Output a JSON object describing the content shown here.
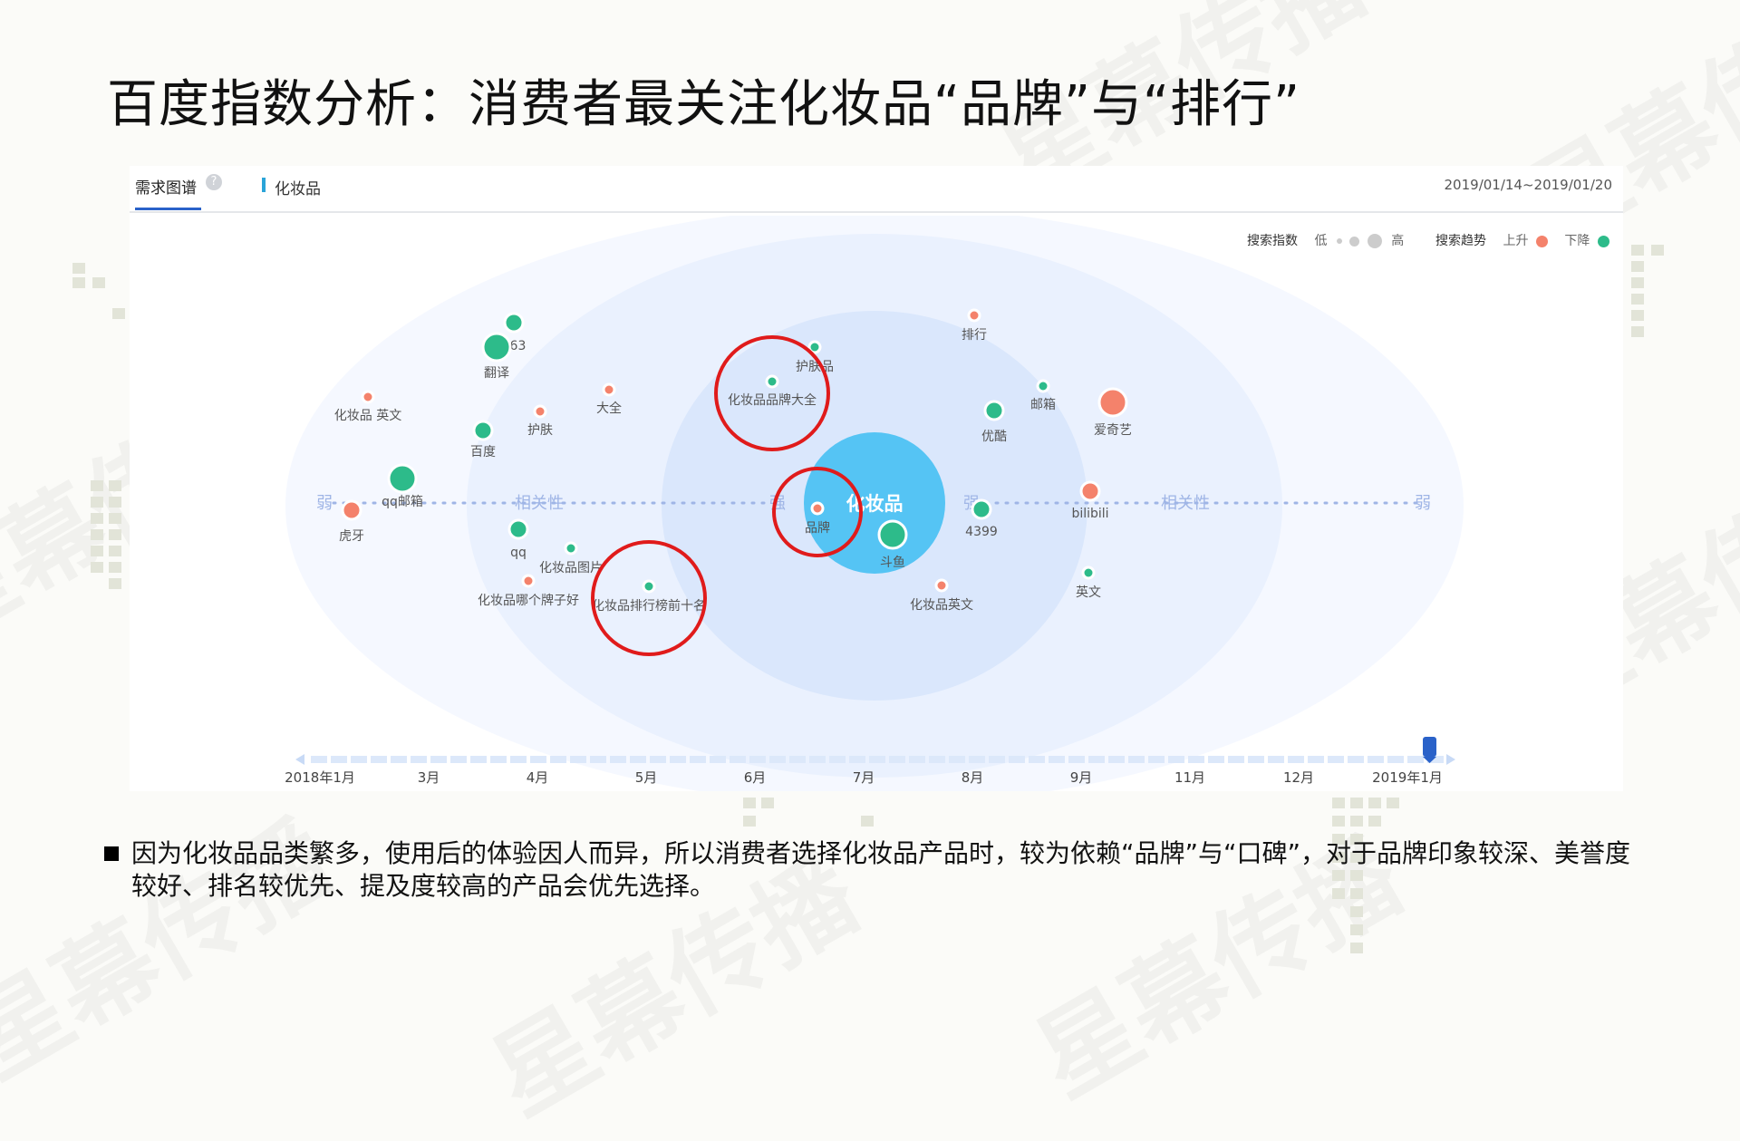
{
  "title": "百度指数分析：消费者最关注化妆品“品牌”与“排行”",
  "watermark": "星幕传播",
  "panel": {
    "tab_demand": "需求图谱",
    "help_icon": "?",
    "keyword": "化妆品",
    "date_range": "2019/01/14~2019/01/20",
    "legend": {
      "search_index_label": "搜索指数",
      "low": "低",
      "high": "高",
      "trend_label": "搜索趋势",
      "up": "上升",
      "down": "下降"
    },
    "axis": {
      "weak_left": "弱",
      "relevance_left": "相关性",
      "strong_left": "强",
      "strong_right": "强",
      "relevance_right": "相关性",
      "weak_right": "弱"
    },
    "center_term": "化妆品",
    "timeline_labels": [
      "2018年1月",
      "3月",
      "4月",
      "5月",
      "6月",
      "7月",
      "8月",
      "9月",
      "11月",
      "12月",
      "2019年1月"
    ]
  },
  "colors": {
    "up": "#f4826b",
    "down": "#2dbb8a",
    "center": "#55c4f4",
    "highlight": "#e01b1b",
    "accent": "#2a62c9"
  },
  "chart_data": {
    "type": "scatter",
    "terms": [
      {
        "label": "163",
        "trend": "down",
        "size": "medium"
      },
      {
        "label": "翻译",
        "trend": "down",
        "size": "large"
      },
      {
        "label": "化妆品 英文",
        "trend": "up",
        "size": "small"
      },
      {
        "label": "百度",
        "trend": "down",
        "size": "medium"
      },
      {
        "label": "护肤",
        "trend": "up",
        "size": "small"
      },
      {
        "label": "大全",
        "trend": "up",
        "size": "small"
      },
      {
        "label": "护肤品",
        "trend": "down",
        "size": "small"
      },
      {
        "label": "化妆品品牌大全",
        "trend": "down",
        "size": "small",
        "highlighted": true
      },
      {
        "label": "排行",
        "trend": "up",
        "size": "small"
      },
      {
        "label": "邮箱",
        "trend": "down",
        "size": "small"
      },
      {
        "label": "爱奇艺",
        "trend": "up",
        "size": "large"
      },
      {
        "label": "优酷",
        "trend": "down",
        "size": "medium"
      },
      {
        "label": "qq邮箱",
        "trend": "down",
        "size": "large"
      },
      {
        "label": "虎牙",
        "trend": "up",
        "size": "medium"
      },
      {
        "label": "qq",
        "trend": "down",
        "size": "medium"
      },
      {
        "label": "化妆品图片",
        "trend": "down",
        "size": "small"
      },
      {
        "label": "化妆品哪个牌子好",
        "trend": "up",
        "size": "small"
      },
      {
        "label": "化妆品排行榜前十名",
        "trend": "down",
        "size": "small",
        "highlighted": true
      },
      {
        "label": "品牌",
        "trend": "up",
        "size": "small",
        "highlighted": true
      },
      {
        "label": "斗鱼",
        "trend": "down",
        "size": "large"
      },
      {
        "label": "4399",
        "trend": "down",
        "size": "medium"
      },
      {
        "label": "bilibili",
        "trend": "up",
        "size": "medium"
      },
      {
        "label": "化妆品英文",
        "trend": "up",
        "size": "small"
      },
      {
        "label": "英文",
        "trend": "down",
        "size": "small"
      }
    ]
  },
  "bullet": "因为化妆品品类繁多，使用后的体验因人而异，所以消费者选择化妆品产品时，较为依赖“品牌”与“口碑”，对于品牌印象较深、美誉度较好、排名较优先、提及度较高的产品会优先选择。"
}
